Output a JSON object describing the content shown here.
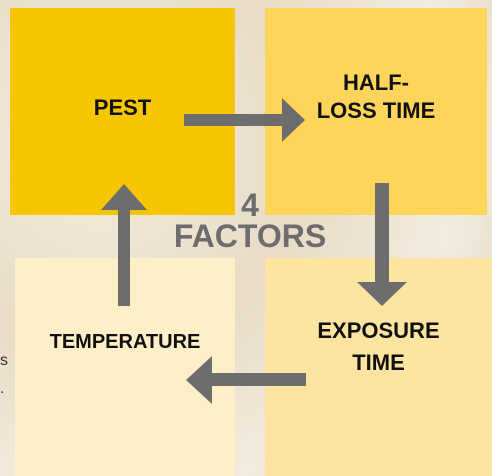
{
  "center": {
    "lines": [
      "4",
      "FACTORS"
    ]
  },
  "nodes": [
    {
      "lines": [
        "PEST"
      ]
    },
    {
      "lines": [
        "HALF-",
        "LOSS TIME"
      ]
    },
    {
      "lines": [
        "EXPOSURE",
        "TIME"
      ]
    },
    {
      "lines": [
        "TEMPERATURE"
      ]
    }
  ],
  "cropped_text": [
    "s",
    "."
  ]
}
